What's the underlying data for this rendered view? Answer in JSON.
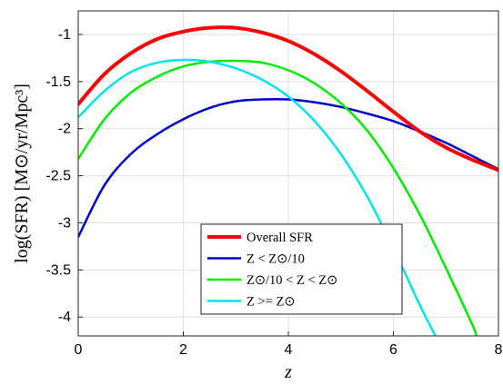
{
  "chart_data": {
    "type": "line",
    "xlabel": "z",
    "ylabel": "log(SFR)  [M⊙/yr/Mpc³]",
    "xlim": [
      0,
      8
    ],
    "ylim": [
      -4.2,
      -0.75
    ],
    "xticks": [
      0,
      2,
      4,
      6,
      8
    ],
    "xtick_labels": [
      "0",
      "2",
      "4",
      "6",
      "8"
    ],
    "yticks": [
      -1,
      -1.5,
      -2,
      -2.5,
      -3,
      -3.5,
      -4
    ],
    "ytick_labels": [
      "-1",
      "-1.5",
      "-2",
      "-2.5",
      "-3",
      "-3.5",
      "-4"
    ],
    "grid": true,
    "legend_position": "bottom-center",
    "series": [
      {
        "name": "Overall SFR",
        "color": "#ff0000",
        "width": 4,
        "x": [
          0,
          0.5,
          1,
          1.5,
          2,
          2.5,
          3,
          3.5,
          4,
          4.5,
          5,
          5.5,
          6,
          6.5,
          7,
          7.5,
          8
        ],
        "y": [
          -1.74,
          -1.42,
          -1.2,
          -1.05,
          -0.97,
          -0.93,
          -0.93,
          -0.98,
          -1.07,
          -1.21,
          -1.39,
          -1.6,
          -1.82,
          -2.03,
          -2.2,
          -2.33,
          -2.44
        ]
      },
      {
        "name": "Z < Z⊙/10",
        "color": "#0000cc",
        "width": 2.5,
        "x": [
          0,
          0.5,
          1,
          1.5,
          2,
          2.5,
          3,
          3.5,
          4,
          4.5,
          5,
          5.5,
          6,
          6.5,
          7,
          7.5,
          8
        ],
        "y": [
          -3.15,
          -2.6,
          -2.27,
          -2.06,
          -1.9,
          -1.78,
          -1.71,
          -1.69,
          -1.69,
          -1.72,
          -1.77,
          -1.84,
          -1.92,
          -2.03,
          -2.15,
          -2.29,
          -2.43
        ]
      },
      {
        "name": "Z⊙/10 < Z < Z⊙",
        "color": "#00ee00",
        "width": 2.5,
        "x": [
          0,
          0.5,
          1,
          1.5,
          2,
          2.5,
          3,
          3.5,
          4,
          4.5,
          5,
          5.5,
          6,
          6.5,
          7,
          7.5,
          7.58
        ],
        "y": [
          -2.32,
          -1.9,
          -1.62,
          -1.45,
          -1.34,
          -1.29,
          -1.28,
          -1.3,
          -1.38,
          -1.52,
          -1.73,
          -2.02,
          -2.42,
          -2.91,
          -3.48,
          -4.08,
          -4.2
        ]
      },
      {
        "name": "Z >= Z⊙",
        "color": "#00e5ee",
        "width": 2.5,
        "x": [
          0,
          0.5,
          1,
          1.5,
          2,
          2.5,
          3,
          3.5,
          4,
          4.5,
          5,
          5.5,
          6,
          6.5,
          6.8
        ],
        "y": [
          -1.88,
          -1.6,
          -1.4,
          -1.3,
          -1.27,
          -1.29,
          -1.36,
          -1.48,
          -1.66,
          -1.92,
          -2.27,
          -2.72,
          -3.27,
          -3.87,
          -4.2
        ]
      }
    ]
  }
}
